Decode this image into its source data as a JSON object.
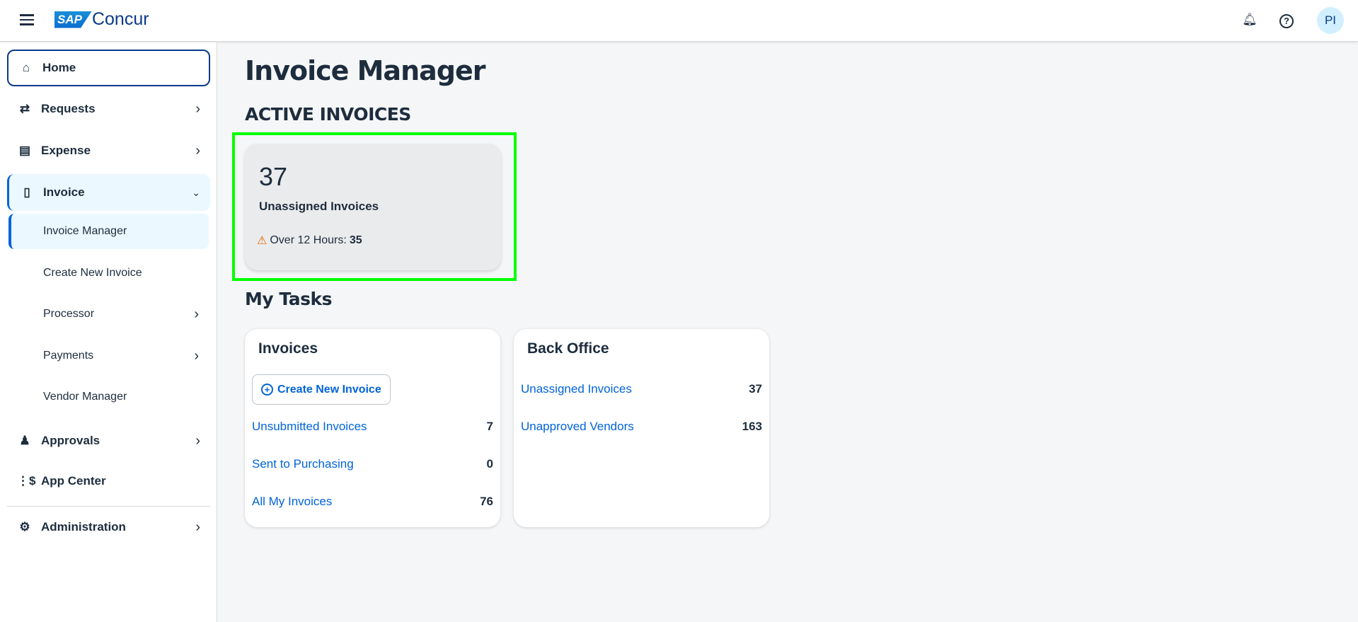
{
  "header": {
    "logo_sap": "SAP",
    "logo_concur": "Concur",
    "avatar_initials": "PI"
  },
  "sidebar": {
    "items": [
      {
        "label": "Home"
      },
      {
        "label": "Requests"
      },
      {
        "label": "Expense"
      },
      {
        "label": "Invoice"
      },
      {
        "label": "Invoice Manager"
      },
      {
        "label": "Create New Invoice"
      },
      {
        "label": "Processor"
      },
      {
        "label": "Payments"
      },
      {
        "label": "Vendor Manager"
      },
      {
        "label": "Approvals"
      },
      {
        "label": "App Center"
      },
      {
        "label": "Administration"
      }
    ]
  },
  "main": {
    "title": "Invoice Manager",
    "active_heading": "ACTIVE INVOICES",
    "kpi": {
      "count": "37",
      "label": "Unassigned Invoices",
      "warning_label": "Over 12 Hours:",
      "warning_value": "35"
    },
    "tasks_heading": "My Tasks",
    "invoices_card": {
      "title": "Invoices",
      "create_button": "Create New Invoice",
      "rows": [
        {
          "label": "Unsubmitted Invoices",
          "count": "7"
        },
        {
          "label": "Sent to Purchasing",
          "count": "0"
        },
        {
          "label": "All My Invoices",
          "count": "76"
        }
      ]
    },
    "back_office_card": {
      "title": "Back Office",
      "rows": [
        {
          "label": "Unassigned Invoices",
          "count": "37"
        },
        {
          "label": "Unapproved Vendors",
          "count": "163"
        }
      ]
    }
  },
  "colors": {
    "accent": "#0064d9",
    "highlight": "#00ff00",
    "warning": "#e76500"
  }
}
